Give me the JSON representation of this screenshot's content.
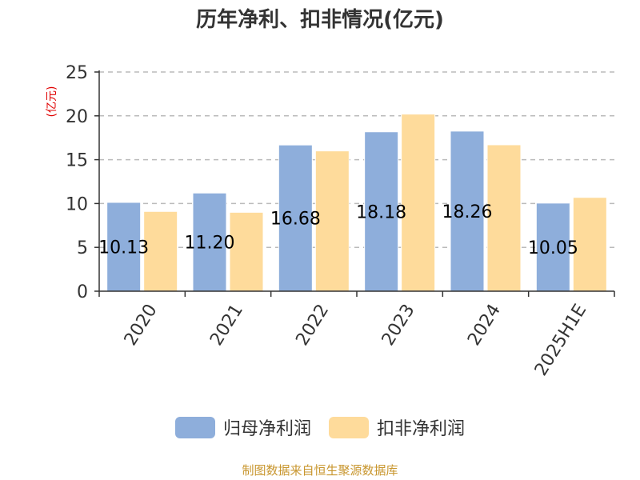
{
  "title": "历年净利、扣非情况(亿元)",
  "unit_label": "(亿元)",
  "source": "制图数据来自恒生聚源数据库",
  "colors": {
    "series1": "#8eaedb",
    "series2": "#fedb9b",
    "unit": "#e00000",
    "source": "#c8962e",
    "grid": "#bbbbbb",
    "axis": "#333333"
  },
  "chart_data": {
    "type": "bar",
    "title": "历年净利、扣非情况(亿元)",
    "ylabel": "(亿元)",
    "ylim": [
      0,
      25
    ],
    "yticks": [
      0,
      5,
      10,
      15,
      20,
      25
    ],
    "grid": true,
    "legend_position": "bottom",
    "categories": [
      "2020",
      "2021",
      "2022",
      "2023",
      "2024",
      "2025H1E"
    ],
    "series": [
      {
        "name": "归母净利润",
        "values": [
          10.13,
          11.2,
          16.68,
          18.18,
          18.26,
          10.05
        ],
        "labels": [
          "10.13",
          "11.20",
          "16.68",
          "18.18",
          "18.26",
          "10.05"
        ]
      },
      {
        "name": "扣非净利润",
        "values": [
          9.1,
          9.0,
          16.0,
          20.2,
          16.7,
          10.7
        ]
      }
    ]
  }
}
